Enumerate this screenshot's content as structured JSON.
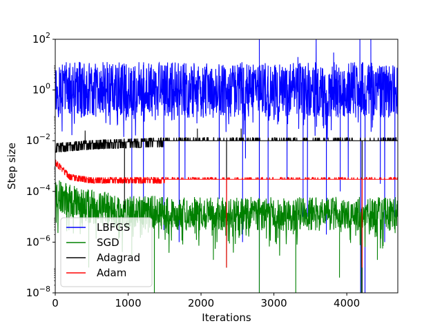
{
  "chart_data": {
    "type": "line",
    "xlabel": "Iterations",
    "ylabel": "Step size",
    "xscale": "linear",
    "yscale": "log",
    "xlim": [
      0,
      4700
    ],
    "ylim": [
      1e-08,
      100
    ],
    "x_ticks": [
      0,
      1000,
      2000,
      3000,
      4000
    ],
    "x_tick_labels": [
      "0",
      "1000",
      "2000",
      "3000",
      "4000"
    ],
    "y_ticks": [
      1e-08,
      1e-06,
      0.0001,
      0.01,
      1,
      100
    ],
    "y_tick_labels": [
      {
        "base": "10",
        "exp": "−8"
      },
      {
        "base": "10",
        "exp": "−6"
      },
      {
        "base": "10",
        "exp": "−4"
      },
      {
        "base": "10",
        "exp": "−2"
      },
      {
        "base": "10",
        "exp": "0"
      },
      {
        "base": "10",
        "exp": "2"
      }
    ],
    "grid": false,
    "legend_position": "lower-left",
    "series": [
      {
        "name": "LBFGS",
        "color": "#0000ff",
        "typical_range": [
          0.05,
          5
        ],
        "median": 1,
        "description_points": [
          [
            0,
            1
          ],
          [
            500,
            1
          ],
          [
            1000,
            1
          ],
          [
            2000,
            1
          ],
          [
            3000,
            1
          ],
          [
            4000,
            1
          ],
          [
            4700,
            1
          ]
        ],
        "dips": [
          [
            1050,
            1e-05
          ],
          [
            1210,
            2e-05
          ],
          [
            1490,
            3e-06
          ],
          [
            1700,
            1e-06
          ],
          [
            1780,
            0.0003
          ],
          [
            2250,
            5e-05
          ],
          [
            2570,
            1e-06
          ],
          [
            2610,
            0.002
          ],
          [
            2800,
            1e-08
          ],
          [
            2920,
            2e-05
          ],
          [
            3180,
            0.0003
          ],
          [
            3400,
            1e-05
          ],
          [
            3460,
            1e-05
          ],
          [
            3720,
            2e-06
          ],
          [
            3910,
            0.0001
          ],
          [
            4020,
            0.0003
          ],
          [
            4190,
            1e-08
          ],
          [
            4250,
            1e-08
          ],
          [
            4460,
            0.0002
          ],
          [
            4520,
            1e-06
          ],
          [
            4660,
            1e-05
          ]
        ],
        "spikes": [
          [
            2800,
            100
          ],
          [
            3330,
            20
          ],
          [
            3580,
            100
          ],
          [
            3820,
            30
          ],
          [
            4180,
            100
          ],
          [
            4330,
            100
          ]
        ]
      },
      {
        "name": "SGD",
        "color": "#008000",
        "typical_range": [
          3e-06,
          5e-05
        ],
        "median": 1.3e-05,
        "description_points": [
          [
            0,
            0.0001
          ],
          [
            200,
            4e-05
          ],
          [
            500,
            2.5e-05
          ],
          [
            1000,
            1.5e-05
          ],
          [
            2000,
            1.3e-05
          ],
          [
            3000,
            1.3e-05
          ],
          [
            4000,
            1.3e-05
          ],
          [
            4700,
            1.3e-05
          ]
        ],
        "dips": [
          [
            460,
            1e-07
          ],
          [
            1050,
            3e-07
          ],
          [
            1360,
            1e-08
          ],
          [
            2170,
            2e-07
          ],
          [
            2350,
            1e-07
          ],
          [
            2800,
            1e-08
          ],
          [
            3300,
            1e-08
          ],
          [
            3900,
            4e-08
          ],
          [
            4200,
            1e-08
          ],
          [
            4420,
            2e-07
          ]
        ],
        "spikes": []
      },
      {
        "name": "Adagrad",
        "color": "#000000",
        "typical_range": [
          0.004,
          0.012
        ],
        "median": 0.01,
        "description_points": [
          [
            0,
            0.006
          ],
          [
            500,
            0.008
          ],
          [
            1000,
            0.009
          ],
          [
            1500,
            0.01
          ],
          [
            2000,
            0.01
          ],
          [
            3000,
            0.01
          ],
          [
            4000,
            0.01
          ],
          [
            4700,
            0.01
          ]
        ],
        "dips": [
          [
            950,
            2e-05
          ],
          [
            2350,
            1e-07
          ],
          [
            4210,
            1e-08
          ]
        ],
        "spikes": [
          [
            410,
            0.025
          ],
          [
            1950,
            0.03
          ],
          [
            2550,
            0.03
          ]
        ]
      },
      {
        "name": "Adam",
        "color": "#ff0000",
        "typical_range": [
          0.0002,
          0.0004
        ],
        "median": 0.0003,
        "description_points": [
          [
            0,
            0.0015
          ],
          [
            100,
            0.0008
          ],
          [
            200,
            0.0004
          ],
          [
            500,
            0.0003
          ],
          [
            1000,
            0.0003
          ],
          [
            2000,
            0.0003
          ],
          [
            3000,
            0.0003
          ],
          [
            4000,
            0.0003
          ],
          [
            4700,
            0.0003
          ]
        ],
        "dips": [
          [
            2350,
            1e-07
          ],
          [
            4210,
            1e-07
          ]
        ],
        "spikes": []
      }
    ]
  }
}
